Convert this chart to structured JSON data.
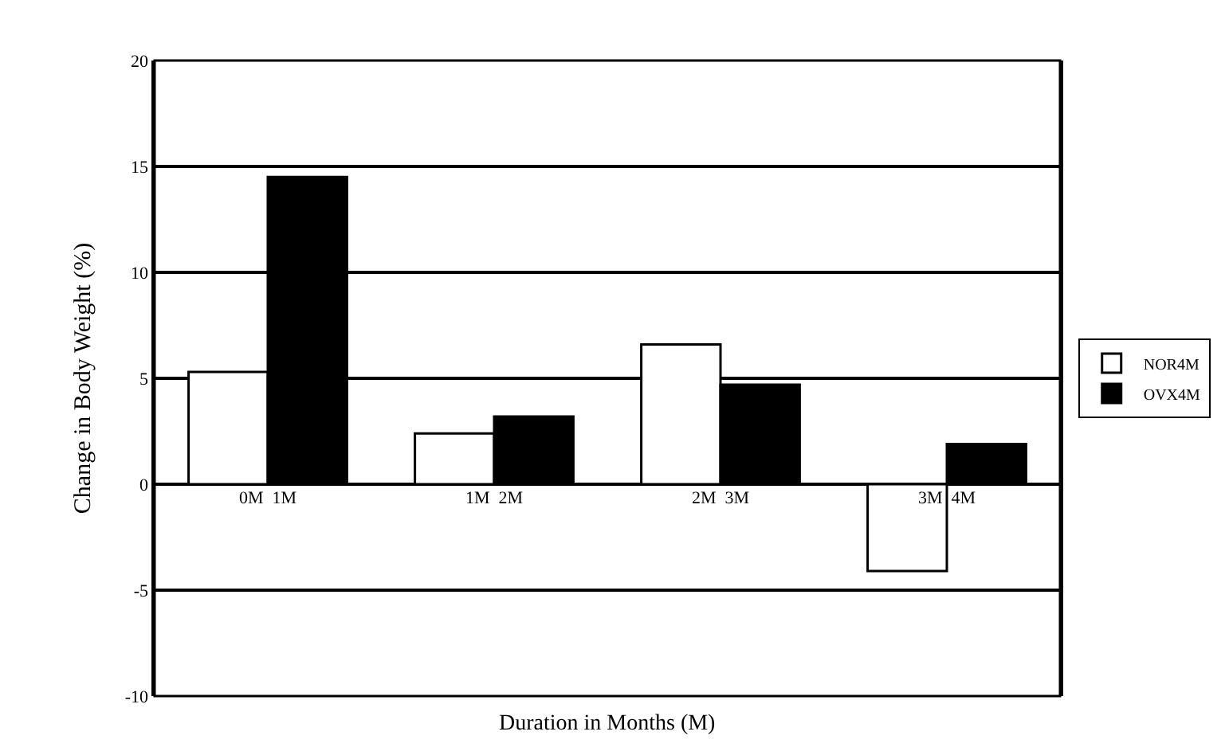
{
  "chart_data": {
    "type": "bar",
    "xlabel": "Duration in Months (M)",
    "ylabel": "Change in Body Weight (%)",
    "categories": [
      "0M  1M",
      "1M  2M",
      "2M  3M",
      "3M  4M"
    ],
    "series": [
      {
        "name": "NOR4M",
        "color": "#ffffff",
        "values": [
          5.3,
          2.4,
          6.6,
          -4.1
        ]
      },
      {
        "name": "OVX4M",
        "color": "#000000",
        "values": [
          14.5,
          3.2,
          4.7,
          1.9
        ]
      }
    ],
    "ylim": [
      -10,
      20
    ],
    "yticks": [
      -10,
      -5,
      0,
      5,
      10,
      15,
      20
    ],
    "grid": "y",
    "legend": "right"
  }
}
